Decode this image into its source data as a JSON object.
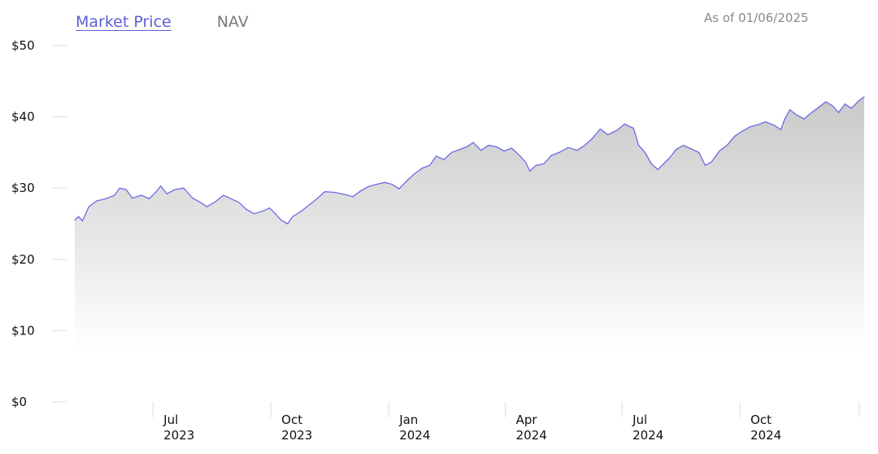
{
  "tabs": [
    {
      "label": "Market Price",
      "active": true
    },
    {
      "label": "NAV",
      "active": false
    }
  ],
  "as_of": "As of 01/06/2025",
  "colors": {
    "line": "#6b6be6",
    "active_tab": "#5b5fd6",
    "fill_top": "#c9c9c9",
    "fill_bottom": "#ffffff"
  },
  "chart_data": {
    "type": "area",
    "xlim": [
      "2023-05-01",
      "2025-01-06"
    ],
    "ylim": [
      0,
      50
    ],
    "y_ticks": [
      {
        "value": 0,
        "label": "$0"
      },
      {
        "value": 10,
        "label": "$10"
      },
      {
        "value": 20,
        "label": "$20"
      },
      {
        "value": 30,
        "label": "$30"
      },
      {
        "value": 40,
        "label": "$40"
      },
      {
        "value": 50,
        "label": "$50"
      }
    ],
    "x_ticks": [
      {
        "date": "2023-07-01",
        "month": "Jul",
        "year": "2023"
      },
      {
        "date": "2023-10-01",
        "month": "Oct",
        "year": "2023"
      },
      {
        "date": "2024-01-01",
        "month": "Jan",
        "year": "2024"
      },
      {
        "date": "2024-04-01",
        "month": "Apr",
        "year": "2024"
      },
      {
        "date": "2024-07-01",
        "month": "Jul",
        "year": "2024"
      },
      {
        "date": "2024-10-01",
        "month": "Oct",
        "year": "2024"
      }
    ],
    "series": [
      {
        "points": [
          [
            "2023-05-01",
            25.5
          ],
          [
            "2023-05-04",
            26.0
          ],
          [
            "2023-05-07",
            25.4
          ],
          [
            "2023-05-12",
            27.4
          ],
          [
            "2023-05-18",
            28.2
          ],
          [
            "2023-05-25",
            28.5
          ],
          [
            "2023-06-01",
            29.0
          ],
          [
            "2023-06-05",
            30.0
          ],
          [
            "2023-06-10",
            29.8
          ],
          [
            "2023-06-15",
            28.6
          ],
          [
            "2023-06-22",
            29.0
          ],
          [
            "2023-06-28",
            28.5
          ],
          [
            "2023-07-03",
            29.4
          ],
          [
            "2023-07-07",
            30.3
          ],
          [
            "2023-07-12",
            29.2
          ],
          [
            "2023-07-18",
            29.8
          ],
          [
            "2023-07-25",
            30.0
          ],
          [
            "2023-08-01",
            28.6
          ],
          [
            "2023-08-07",
            28.0
          ],
          [
            "2023-08-12",
            27.4
          ],
          [
            "2023-08-18",
            28.0
          ],
          [
            "2023-08-25",
            29.0
          ],
          [
            "2023-08-31",
            28.5
          ],
          [
            "2023-09-06",
            28.0
          ],
          [
            "2023-09-12",
            27.0
          ],
          [
            "2023-09-18",
            26.4
          ],
          [
            "2023-09-25",
            26.8
          ],
          [
            "2023-09-30",
            27.2
          ],
          [
            "2023-10-05",
            26.3
          ],
          [
            "2023-10-09",
            25.5
          ],
          [
            "2023-10-14",
            25.0
          ],
          [
            "2023-10-18",
            26.0
          ],
          [
            "2023-10-25",
            26.8
          ],
          [
            "2023-11-01",
            27.8
          ],
          [
            "2023-11-06",
            28.5
          ],
          [
            "2023-11-12",
            29.5
          ],
          [
            "2023-11-20",
            29.4
          ],
          [
            "2023-11-28",
            29.1
          ],
          [
            "2023-12-04",
            28.8
          ],
          [
            "2023-12-10",
            29.6
          ],
          [
            "2023-12-16",
            30.2
          ],
          [
            "2023-12-22",
            30.5
          ],
          [
            "2023-12-29",
            30.8
          ],
          [
            "2024-01-04",
            30.5
          ],
          [
            "2024-01-09",
            29.9
          ],
          [
            "2024-01-15",
            31.0
          ],
          [
            "2024-01-21",
            32.0
          ],
          [
            "2024-01-27",
            32.8
          ],
          [
            "2024-02-02",
            33.2
          ],
          [
            "2024-02-07",
            34.5
          ],
          [
            "2024-02-13",
            34.0
          ],
          [
            "2024-02-19",
            35.0
          ],
          [
            "2024-02-25",
            35.4
          ],
          [
            "2024-03-02",
            35.8
          ],
          [
            "2024-03-07",
            36.4
          ],
          [
            "2024-03-13",
            35.3
          ],
          [
            "2024-03-19",
            36.0
          ],
          [
            "2024-03-25",
            35.8
          ],
          [
            "2024-03-31",
            35.2
          ],
          [
            "2024-04-06",
            35.6
          ],
          [
            "2024-04-12",
            34.6
          ],
          [
            "2024-04-17",
            33.6
          ],
          [
            "2024-04-20",
            32.4
          ],
          [
            "2024-04-25",
            33.2
          ],
          [
            "2024-05-01",
            33.4
          ],
          [
            "2024-05-07",
            34.6
          ],
          [
            "2024-05-13",
            35.0
          ],
          [
            "2024-05-20",
            35.7
          ],
          [
            "2024-05-27",
            35.3
          ],
          [
            "2024-06-02",
            36.0
          ],
          [
            "2024-06-08",
            37.0
          ],
          [
            "2024-06-14",
            38.3
          ],
          [
            "2024-06-20",
            37.5
          ],
          [
            "2024-06-27",
            38.1
          ],
          [
            "2024-07-03",
            39.0
          ],
          [
            "2024-07-10",
            38.4
          ],
          [
            "2024-07-14",
            36.0
          ],
          [
            "2024-07-19",
            35.0
          ],
          [
            "2024-07-24",
            33.4
          ],
          [
            "2024-07-29",
            32.6
          ],
          [
            "2024-08-03",
            33.5
          ],
          [
            "2024-08-07",
            34.2
          ],
          [
            "2024-08-12",
            35.4
          ],
          [
            "2024-08-18",
            36.0
          ],
          [
            "2024-08-24",
            35.5
          ],
          [
            "2024-08-30",
            35.0
          ],
          [
            "2024-09-04",
            33.2
          ],
          [
            "2024-09-09",
            33.7
          ],
          [
            "2024-09-15",
            35.2
          ],
          [
            "2024-09-21",
            36.0
          ],
          [
            "2024-09-27",
            37.3
          ],
          [
            "2024-10-03",
            38.0
          ],
          [
            "2024-10-09",
            38.6
          ],
          [
            "2024-10-15",
            38.9
          ],
          [
            "2024-10-21",
            39.3
          ],
          [
            "2024-10-28",
            38.8
          ],
          [
            "2024-11-02",
            38.2
          ],
          [
            "2024-11-05",
            39.7
          ],
          [
            "2024-11-09",
            41.0
          ],
          [
            "2024-11-14",
            40.3
          ],
          [
            "2024-11-20",
            39.7
          ],
          [
            "2024-11-26",
            40.6
          ],
          [
            "2024-12-02",
            41.4
          ],
          [
            "2024-12-07",
            42.1
          ],
          [
            "2024-12-12",
            41.6
          ],
          [
            "2024-12-17",
            40.6
          ],
          [
            "2024-12-22",
            41.8
          ],
          [
            "2024-12-27",
            41.2
          ],
          [
            "2025-01-02",
            42.3
          ],
          [
            "2025-01-06",
            42.8
          ]
        ]
      }
    ]
  }
}
